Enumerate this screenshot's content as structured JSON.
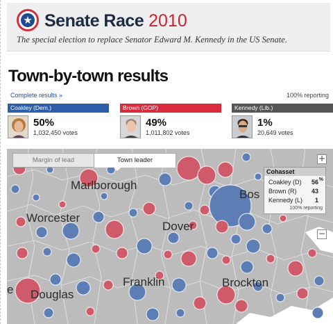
{
  "header": {
    "title_bold": "Senate Race",
    "title_year": "2010",
    "subtitle": "The special election to replace Senator Edward M. Kennedy in the US Senate.",
    "logo_icon": "star-logo-icon"
  },
  "results": {
    "heading": "Town-by-town results",
    "complete_link": "Complete results »",
    "reporting": "100% reporting"
  },
  "candidates": [
    {
      "label": "Coakley (Dem.)",
      "pct": "50%",
      "votes": "1,032,450 votes",
      "color": "#2e5ea8"
    },
    {
      "label": "Brown (GOP)",
      "pct": "49%",
      "votes": "1,011,802 votes",
      "color": "#d82c3e"
    },
    {
      "label": "Kennedy (Lib.)",
      "pct": "1%",
      "votes": "20,649 votes",
      "color": "#555555"
    }
  ],
  "map": {
    "tabs": {
      "margin": "Margin of lead",
      "leader": "Town leader"
    },
    "zoom_in": "+",
    "zoom_out": "−",
    "labels": [
      "Marlborough",
      "Bos",
      "Worcester",
      "Dover",
      "Franklin",
      "Brockton",
      "Douglas",
      "e"
    ],
    "colors": {
      "dem": "#5d7eb5",
      "gop": "#cf5a69",
      "land": "#bcbcbc"
    },
    "popup": {
      "town": "Cohasset",
      "rows": [
        {
          "name": "Coakley (D)",
          "value": "56",
          "pct_sign": "%"
        },
        {
          "name": "Brown (R)",
          "value": "43"
        },
        {
          "name": "Kennedy (L)",
          "value": "1"
        }
      ],
      "footer": "100% reporting"
    }
  }
}
